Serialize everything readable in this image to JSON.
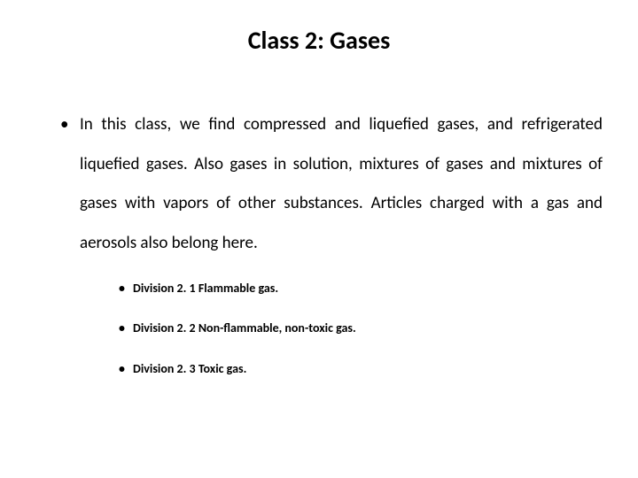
{
  "slide": {
    "title": "Class 2: Gases",
    "title_fontsize": 28,
    "title_fontweight": 700,
    "title_color": "#000000",
    "background_color": "#ffffff",
    "body_text": "In this class, we find compressed and liquefied gases, and refrigerated liquefied gases. Also gases in solution, mixtures of gases and mixtures of gases with vapors of other substances. Articles charged with a gas and aerosols also belong here.",
    "body_fontsize": 19,
    "body_lineheight": 2.35,
    "body_align": "justify",
    "subitems": [
      "Division 2. 1 Flammable gas.",
      "Division 2. 2 Non-flammable, non-toxic gas.",
      "Division 2. 3 Toxic gas."
    ],
    "sub_fontsize": 14,
    "sub_fontweight": 700
  }
}
